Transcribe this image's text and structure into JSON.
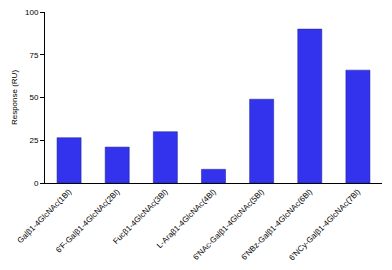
{
  "chart_data": {
    "type": "bar",
    "y_label": "Response (RU)",
    "categories": [
      "Galβ1-4GlcNAc(1Bl)",
      "6'F-Galβ1-4GlcNAc(2Bl)",
      "Fucβ1-4GlcNAc(3Bl)",
      "L-Araβ1-4GlcNAc(4Bl)",
      "6'NAc-Galβ1-4GlcNAc(5Bl)",
      "6'NBz-Galβ1-4GlcNAc(6Bl)",
      "6'NCy-Galβ1-4GlcNAc(7Bl)"
    ],
    "values": [
      26.5,
      21,
      30,
      8,
      49,
      90,
      66
    ],
    "color": "#3333ee",
    "ylim": [
      0,
      100
    ],
    "yticks": [
      0,
      25,
      50,
      75,
      100
    ],
    "grid": false
  }
}
